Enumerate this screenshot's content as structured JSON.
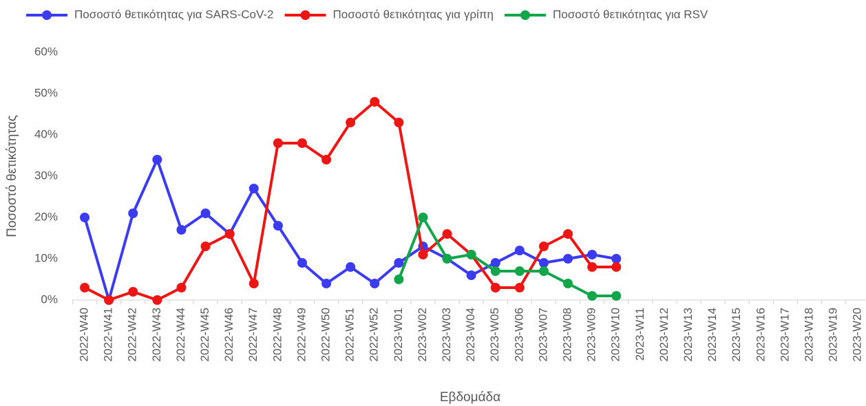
{
  "chart_data": {
    "type": "line",
    "x_label": "Εβδομάδα",
    "y_label": "Ποσοστό θετικότητας",
    "categories": [
      "2022-W40",
      "2022-W41",
      "2022-W42",
      "2022-W43",
      "2022-W44",
      "2022-W45",
      "2022-W46",
      "2022-W47",
      "2022-W48",
      "2022-W49",
      "2022-W50",
      "2022-W51",
      "2022-W52",
      "2023-W01",
      "2023-W02",
      "2023-W03",
      "2023-W04",
      "2023-W05",
      "2023-W06",
      "2023-W07",
      "2023-W08",
      "2023-W09",
      "2023-W10",
      "2023-W11",
      "2023-W12",
      "2023-W13",
      "2023-W14",
      "2023-W15",
      "2023-W16",
      "2023-W17",
      "2023-W18",
      "2023-W19",
      "2023-W20"
    ],
    "series": [
      {
        "name": "Ποσοστό θετικότητας για SARS-CoV-2",
        "color": "#3b3bf2",
        "values": [
          20,
          0,
          21,
          34,
          17,
          21,
          16,
          27,
          18,
          9,
          4,
          8,
          4,
          9,
          13,
          10,
          6,
          9,
          12,
          9,
          10,
          11,
          10,
          null,
          null,
          null,
          null,
          null,
          null,
          null,
          null,
          null,
          null
        ]
      },
      {
        "name": "Ποσοστό θετικότητας για γρίπη",
        "color": "#ee1515",
        "values": [
          3,
          0,
          2,
          0,
          3,
          13,
          16,
          4,
          38,
          38,
          34,
          43,
          48,
          43,
          11,
          16,
          11,
          3,
          3,
          13,
          16,
          8,
          8,
          null,
          null,
          null,
          null,
          null,
          null,
          null,
          null,
          null,
          null
        ]
      },
      {
        "name": "Ποσοστό θετικότητας για RSV",
        "color": "#12a64b",
        "values": [
          null,
          null,
          null,
          null,
          null,
          null,
          null,
          null,
          null,
          null,
          null,
          null,
          null,
          5,
          20,
          10,
          11,
          7,
          7,
          7,
          4,
          1,
          1,
          null,
          null,
          null,
          null,
          null,
          null,
          null,
          null,
          null,
          null
        ]
      }
    ],
    "ylim": [
      0,
      60
    ],
    "yticks": [
      {
        "value": 0,
        "label": "0%"
      },
      {
        "value": 10,
        "label": "10%"
      },
      {
        "value": 20,
        "label": "20%"
      },
      {
        "value": 30,
        "label": "30%"
      },
      {
        "value": 40,
        "label": "40%"
      },
      {
        "value": 50,
        "label": "50%"
      },
      {
        "value": 60,
        "label": "60%"
      }
    ],
    "grid": false,
    "legend": "top"
  }
}
